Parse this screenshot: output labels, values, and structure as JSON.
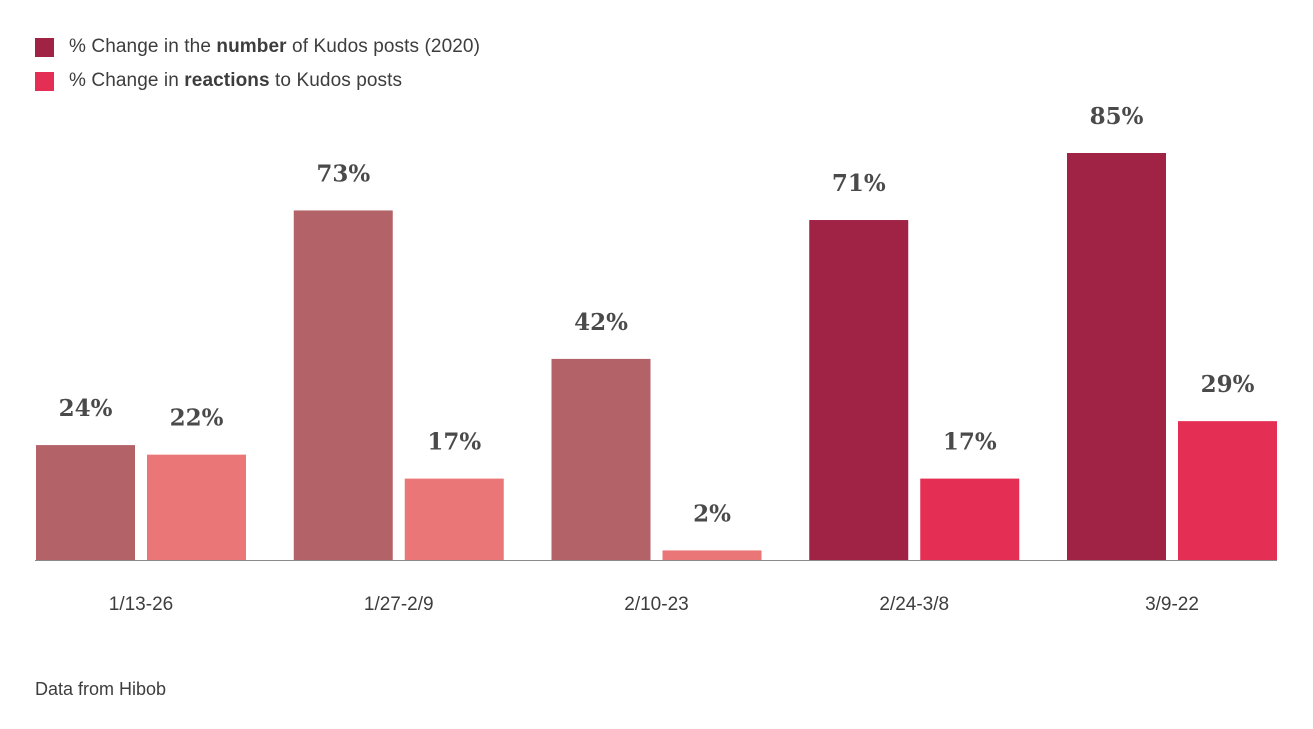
{
  "legend": {
    "items": [
      {
        "pre": "% Change in the ",
        "bold": "number",
        "post": " of Kudos posts (2020)",
        "color": "#a02244"
      },
      {
        "pre": "% Change in ",
        "bold": "reactions",
        "post": " to Kudos posts",
        "color": "#e52e54"
      }
    ]
  },
  "source": "Data from Hibob",
  "chart_data": {
    "type": "bar",
    "categories": [
      "1/13-26",
      "1/27-2/9",
      "2/10-23",
      "2/24-3/8",
      "3/9-22"
    ],
    "series": [
      {
        "name": "% Change in the number of Kudos posts (2020)",
        "values": [
          24,
          73,
          42,
          71,
          85
        ],
        "labels": [
          "24%",
          "73%",
          "42%",
          "71%",
          "85%"
        ],
        "colors": [
          "#b36267",
          "#b36267",
          "#b36267",
          "#a02244",
          "#a02244"
        ]
      },
      {
        "name": "% Change in reactions to Kudos posts",
        "values": [
          22,
          17,
          2,
          17,
          29
        ],
        "labels": [
          "22%",
          "17%",
          "2%",
          "17%",
          "29%"
        ],
        "colors": [
          "#eb7677",
          "#eb7677",
          "#eb7677",
          "#e52e54",
          "#e52e54"
        ]
      }
    ],
    "ylim": [
      0,
      85
    ],
    "grid": false,
    "legend_position": "top-left"
  }
}
